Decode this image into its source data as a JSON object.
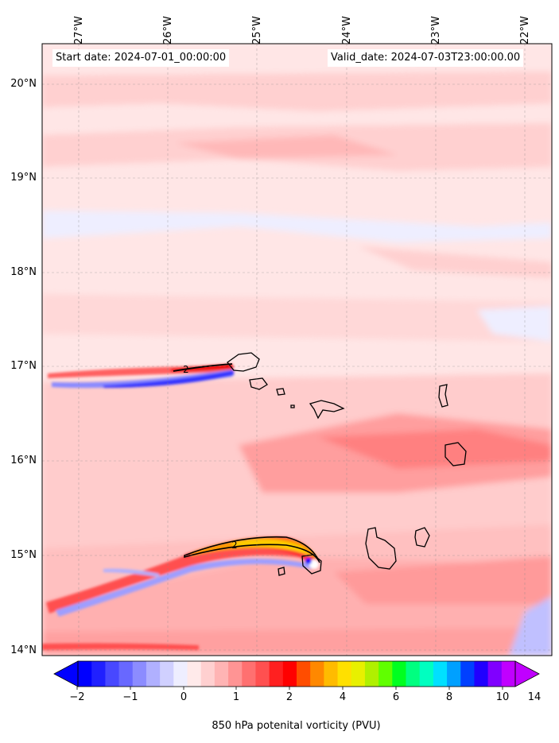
{
  "header": {
    "start_date": "Start date: 2024-07-01_00:00:00",
    "valid_date": "Valid_date: 2024-07-03T23:00:00.00"
  },
  "axes": {
    "lon_labels": [
      "27°W",
      "26°W",
      "25°W",
      "24°W",
      "23°W",
      "22°W"
    ],
    "lat_labels": [
      "20°N",
      "19°N",
      "18°N",
      "17°N",
      "16°N",
      "15°N",
      "14°N"
    ]
  },
  "colorbar": {
    "title": "850 hPa potenital vorticity (PVU)",
    "tick_labels": [
      "−2",
      "−1",
      "0",
      "1",
      "2",
      "4",
      "6",
      "8",
      "10",
      "14"
    ],
    "colors": [
      "#0000ff",
      "#2020ff",
      "#4848ff",
      "#6868ff",
      "#8c8cff",
      "#b0b0ff",
      "#d0d0ff",
      "#eeeeff",
      "#ffeaea",
      "#ffd0d0",
      "#ffb4b4",
      "#ff9494",
      "#ff7070",
      "#ff5050",
      "#ff2020",
      "#ff0000",
      "#ff4d00",
      "#ff8800",
      "#ffbb00",
      "#ffe000",
      "#e8f000",
      "#b0f000",
      "#60ff00",
      "#00ff20",
      "#00ff80",
      "#00ffc0",
      "#00e0ff",
      "#00a0ff",
      "#0040ff",
      "#2000ff",
      "#8000ff",
      "#c000ff"
    ]
  },
  "map": {
    "contour_labels": [
      "2",
      "2"
    ],
    "region": "Cabo Verde islands"
  }
}
